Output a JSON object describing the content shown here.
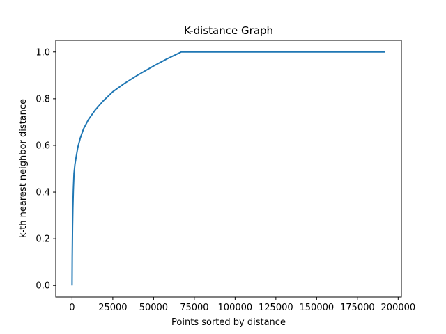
{
  "chart_data": {
    "type": "line",
    "title": "K-distance Graph",
    "xlabel": "Points sorted by distance",
    "ylabel": "k-th nearest neighbor distance",
    "xlim": [
      -10000,
      202000
    ],
    "ylim": [
      -0.05,
      1.05
    ],
    "xticks": [
      0,
      25000,
      50000,
      75000,
      100000,
      125000,
      150000,
      175000,
      200000
    ],
    "xtick_labels": [
      "0",
      "25000",
      "50000",
      "75000",
      "100000",
      "125000",
      "150000",
      "175000",
      "200000"
    ],
    "yticks": [
      0.0,
      0.2,
      0.4,
      0.6,
      0.8,
      1.0
    ],
    "ytick_labels": [
      "0.0",
      "0.2",
      "0.4",
      "0.6",
      "0.8",
      "1.0"
    ],
    "grid": false,
    "series": [
      {
        "color": "#1f77b4",
        "x": [
          0,
          100,
          300,
          500,
          800,
          1200,
          1800,
          2500,
          3500,
          5000,
          7000,
          10000,
          14000,
          19000,
          25000,
          32000,
          40000,
          50000,
          58000,
          67000,
          100000,
          150000,
          192000
        ],
        "y": [
          0.0,
          0.12,
          0.25,
          0.33,
          0.41,
          0.48,
          0.52,
          0.55,
          0.59,
          0.63,
          0.67,
          0.71,
          0.75,
          0.79,
          0.83,
          0.865,
          0.9,
          0.94,
          0.97,
          1.0,
          1.0,
          1.0,
          1.0
        ]
      }
    ]
  }
}
